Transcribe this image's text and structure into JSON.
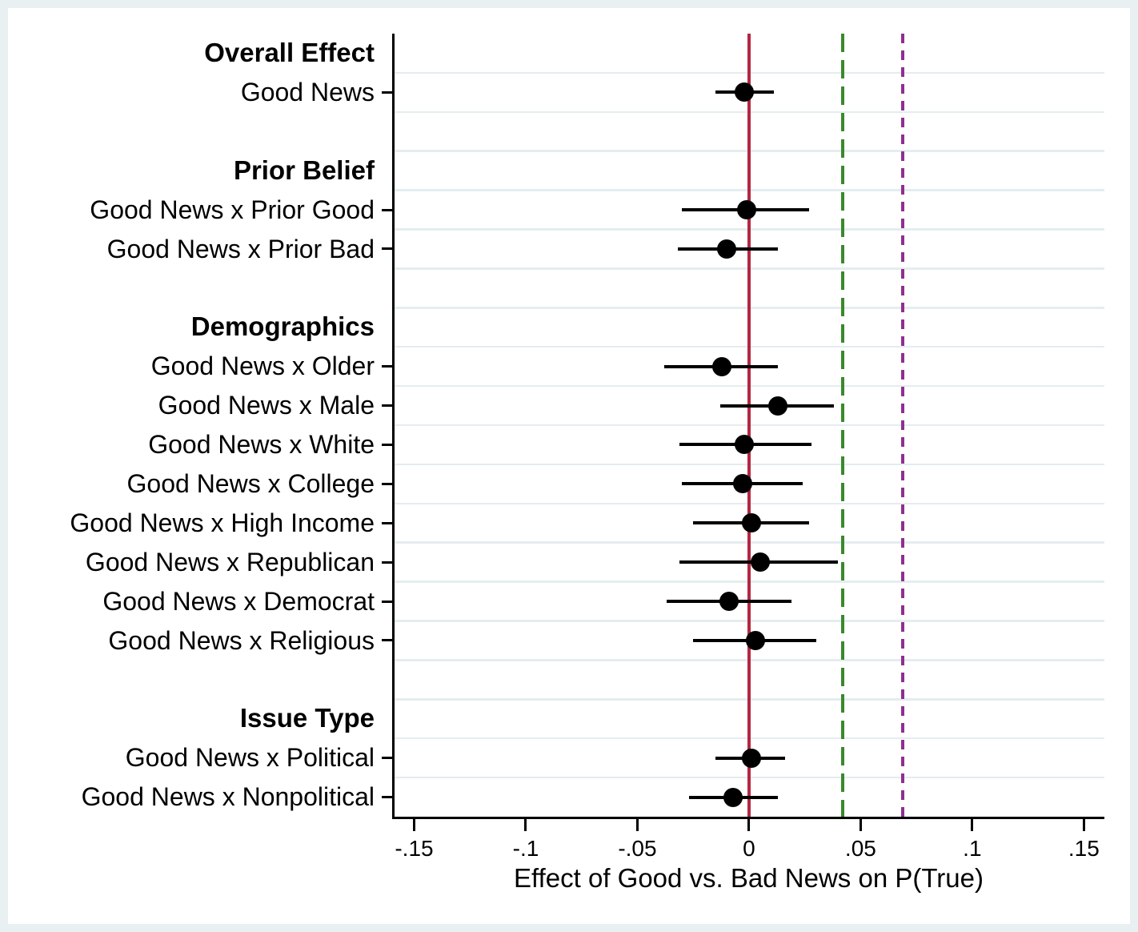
{
  "chart_data": {
    "type": "scatter",
    "subtype": "coefficient-forest-plot",
    "title": "",
    "xlabel": "Effect of Good vs. Bad News on P(True)",
    "ylabel": "",
    "xlim": [
      -0.1595,
      0.1592
    ],
    "grid": true,
    "xticks": [
      -0.15,
      -0.1,
      -0.05,
      0,
      0.05,
      0.1,
      0.15
    ],
    "xtick_labels": [
      "-.15",
      "-.1",
      "-.05",
      "0",
      ".05",
      ".1",
      ".15"
    ],
    "groups": [
      {
        "header": "Overall Effect",
        "items": [
          {
            "label": "Good News",
            "est": -0.002,
            "ci_low": -0.015,
            "ci_high": 0.011
          }
        ]
      },
      {
        "header": "Prior Belief",
        "items": [
          {
            "label": "Good News x Prior Good",
            "est": -0.001,
            "ci_low": -0.03,
            "ci_high": 0.027
          },
          {
            "label": "Good News x Prior Bad",
            "est": -0.01,
            "ci_low": -0.032,
            "ci_high": 0.013
          }
        ]
      },
      {
        "header": "Demographics",
        "items": [
          {
            "label": "Good News x Older",
            "est": -0.012,
            "ci_low": -0.038,
            "ci_high": 0.013
          },
          {
            "label": "Good News x Male",
            "est": 0.013,
            "ci_low": -0.013,
            "ci_high": 0.038
          },
          {
            "label": "Good News x White",
            "est": -0.002,
            "ci_low": -0.031,
            "ci_high": 0.028
          },
          {
            "label": "Good News x College",
            "est": -0.003,
            "ci_low": -0.03,
            "ci_high": 0.024
          },
          {
            "label": "Good News x High Income",
            "est": 0.001,
            "ci_low": -0.025,
            "ci_high": 0.027
          },
          {
            "label": "Good News x Republican",
            "est": 0.005,
            "ci_low": -0.031,
            "ci_high": 0.04
          },
          {
            "label": "Good News x Democrat",
            "est": -0.009,
            "ci_low": -0.037,
            "ci_high": 0.019
          },
          {
            "label": "Good News x Religious",
            "est": 0.003,
            "ci_low": -0.025,
            "ci_high": 0.03
          }
        ]
      },
      {
        "header": "Issue Type",
        "items": [
          {
            "label": "Good News x Political",
            "est": 0.001,
            "ci_low": -0.015,
            "ci_high": 0.016
          },
          {
            "label": "Good News x Nonpolitical",
            "est": -0.007,
            "ci_low": -0.027,
            "ci_high": 0.013
          }
        ]
      }
    ],
    "ref_lines": [
      {
        "value": 0,
        "style": "solid",
        "color": "#b42741",
        "name": "zero-reference-line"
      },
      {
        "value": 0.042,
        "style": "dashed",
        "color": "#3a892c",
        "name": "green-dashed-reference-line"
      },
      {
        "value": 0.069,
        "style": "dotted",
        "color": "#8e3090",
        "name": "purple-dotted-reference-line"
      }
    ],
    "marker_color": "#000000",
    "ci_color": "#000000",
    "grid_color": "#e4edf0",
    "axis_color": "#000000",
    "plot_background": "#ffffff",
    "frame_background": "#e9f0f2",
    "legend": "none"
  }
}
